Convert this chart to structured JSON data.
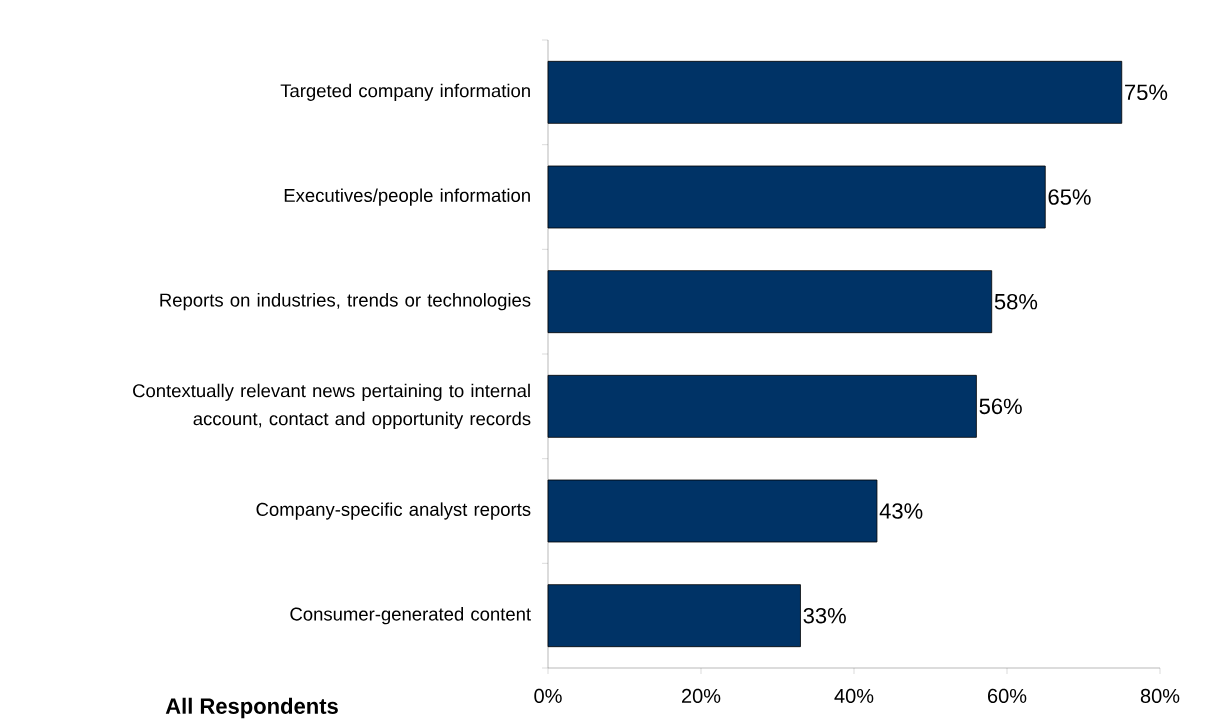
{
  "chart_data": {
    "type": "bar",
    "orientation": "horizontal",
    "categories": [
      "Targeted company information",
      "Executives/people information",
      "Reports on industries, trends or technologies",
      "Contextually relevant news pertaining to internal account, contact and opportunity records",
      "Company-specific analyst reports",
      "Consumer-generated content"
    ],
    "values": [
      75,
      65,
      58,
      56,
      43,
      33
    ],
    "value_labels": [
      "75%",
      "65%",
      "58%",
      "56%",
      "43%",
      "33%"
    ],
    "color": "#003366",
    "xlim": [
      0,
      80
    ],
    "xticks": [
      {
        "value": 0,
        "label": "0%"
      },
      {
        "value": 20,
        "label": "20%"
      },
      {
        "value": 40,
        "label": "40%"
      },
      {
        "value": 60,
        "label": "60%"
      },
      {
        "value": 80,
        "label": "80%"
      }
    ],
    "annotations": [
      "All Respondents"
    ]
  }
}
